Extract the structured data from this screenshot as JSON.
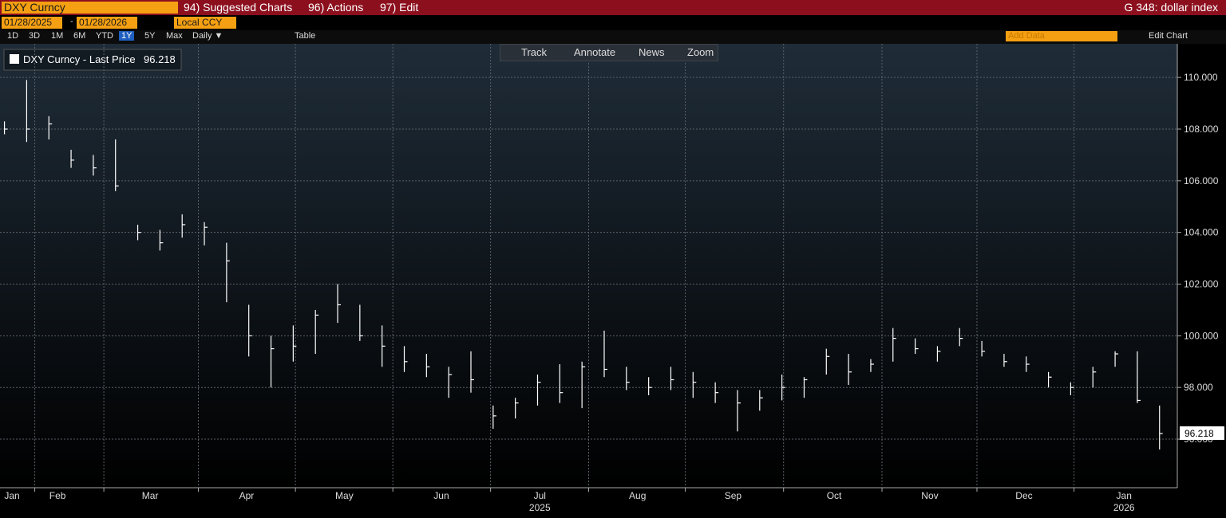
{
  "ui": {
    "ticker": "DXY Curncy",
    "menu": [
      "94) Suggested Charts",
      "96) Actions",
      "97) Edit"
    ],
    "function": "G 348: dollar index",
    "start_date": "01/28/2025",
    "date_sep": "-",
    "end_date": "01/28/2026",
    "currency": "Local CCY",
    "periods": [
      "1D",
      "3D",
      "1M",
      "6M",
      "YTD",
      "1Y",
      "5Y",
      "Max"
    ],
    "frequency": "Daily ▼",
    "table": "Table",
    "add_data": "Add Data",
    "edit_chart": "Edit Chart",
    "tools": [
      "Track",
      "Annotate",
      "News",
      "Zoom"
    ]
  },
  "chart_data": {
    "type": "ohlc",
    "series_name": "DXY Curncy - Last Price",
    "color": "#ffffff",
    "x": [
      0,
      1,
      2,
      3,
      4,
      5,
      6,
      7,
      8,
      9,
      10,
      11,
      12,
      13,
      14,
      15,
      16,
      17,
      18,
      19,
      20,
      21,
      22,
      23,
      24,
      25,
      26,
      27,
      28,
      29,
      30,
      31,
      32,
      33,
      34,
      35,
      36,
      37,
      38,
      39,
      40,
      41,
      42,
      43,
      44,
      45,
      46,
      47,
      48,
      49,
      50,
      51,
      52
    ],
    "high": [
      108.3,
      109.9,
      108.5,
      107.2,
      107,
      107.6,
      104.3,
      104.1,
      104.7,
      104.4,
      103.6,
      101.2,
      100,
      100.4,
      101,
      102,
      101.2,
      100.4,
      99.6,
      99.3,
      98.8,
      99.4,
      97.3,
      97.6,
      98.5,
      98.9,
      99,
      100.2,
      98.8,
      98.4,
      98.8,
      98.6,
      98.2,
      97.9,
      97.9,
      98.5,
      98.4,
      99.5,
      99.3,
      99.1,
      100.3,
      99.9,
      99.6,
      100.3,
      99.8,
      99.3,
      99.2,
      98.6,
      98.2,
      98.8,
      99.4,
      99.4,
      97.3
    ],
    "low": [
      107.8,
      107.5,
      107.6,
      106.5,
      106.2,
      105.6,
      103.7,
      103.3,
      103.8,
      103.5,
      101.3,
      99.2,
      98,
      99,
      99.3,
      100.5,
      99.8,
      98.8,
      98.6,
      98.4,
      97.6,
      97.8,
      96.4,
      96.8,
      97.3,
      97.4,
      97.2,
      98.4,
      97.9,
      97.7,
      97.9,
      97.6,
      97.4,
      96.3,
      97.1,
      97.5,
      97.6,
      98.5,
      98.1,
      98.6,
      99,
      99.3,
      99,
      99.6,
      99.2,
      98.8,
      98.6,
      98,
      97.7,
      98,
      98.8,
      97.4,
      95.6
    ],
    "close": [
      108,
      108,
      108.2,
      106.8,
      106.5,
      105.8,
      104,
      103.6,
      104.3,
      104.2,
      102.9,
      100,
      99.5,
      99.6,
      100.8,
      101.2,
      100,
      99.6,
      99,
      98.8,
      98.5,
      98.3,
      96.9,
      97.4,
      98.2,
      97.8,
      98.8,
      98.7,
      98.2,
      98,
      98.3,
      98.2,
      97.8,
      97.4,
      97.6,
      98,
      98.3,
      99.2,
      98.6,
      98.9,
      99.9,
      99.5,
      99.4,
      99.9,
      99.4,
      99,
      98.9,
      98.4,
      98,
      98.6,
      99.3,
      97.5,
      96.218
    ],
    "xlim": [
      -0.2,
      52.8
    ],
    "xticks": [
      {
        "value": 0.34,
        "label": "Jan"
      },
      {
        "value": 2.39,
        "label": "Feb"
      },
      {
        "value": 6.56,
        "label": "Mar"
      },
      {
        "value": 10.9,
        "label": "Apr"
      },
      {
        "value": 15.3,
        "label": "May"
      },
      {
        "value": 19.67,
        "label": "Jun"
      },
      {
        "value": 24.1,
        "label": "Jul"
      },
      {
        "value": 28.5,
        "label": "Aug"
      },
      {
        "value": 32.8,
        "label": "Sep"
      },
      {
        "value": 37.35,
        "label": "Oct"
      },
      {
        "value": 41.66,
        "label": "Nov"
      },
      {
        "value": 45.9,
        "label": "Dec"
      },
      {
        "value": 50.4,
        "label": "Jan"
      }
    ],
    "year_labels": [
      {
        "value": 24.1,
        "label": "2025"
      },
      {
        "value": 50.4,
        "label": "2026"
      }
    ],
    "ylim": [
      94.12,
      111.3
    ],
    "yticks": [
      {
        "value": 96,
        "label": "96.000"
      },
      {
        "value": 98,
        "label": "98.000"
      },
      {
        "value": 100,
        "label": "100.000"
      },
      {
        "value": 102,
        "label": "102.000"
      },
      {
        "value": 104,
        "label": "104.000"
      },
      {
        "value": 106,
        "label": "106.000"
      },
      {
        "value": 108,
        "label": "108.000"
      },
      {
        "value": 110,
        "label": "110.000"
      }
    ],
    "grid": true
  }
}
